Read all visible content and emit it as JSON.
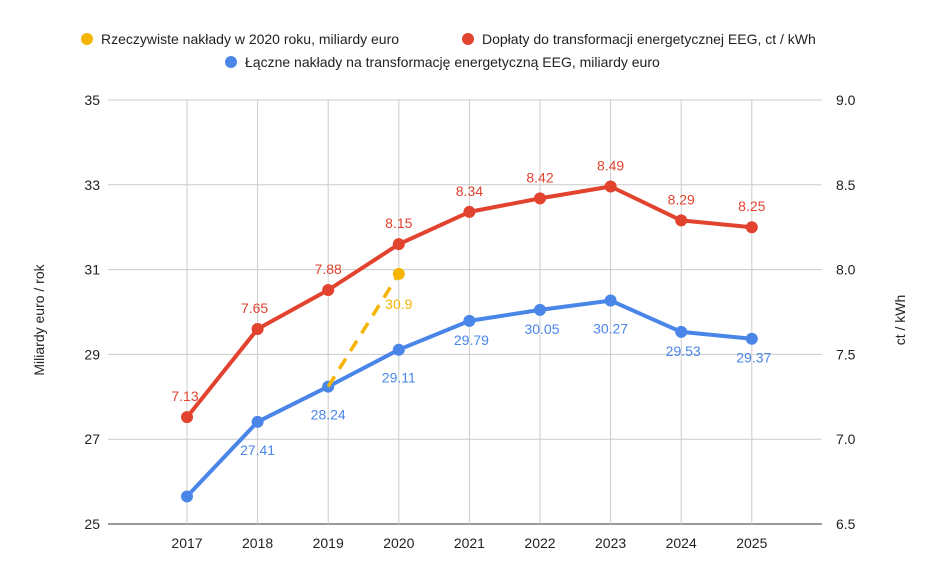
{
  "chart_data": {
    "type": "line",
    "categories": [
      "2017",
      "2018",
      "2019",
      "2020",
      "2021",
      "2022",
      "2023",
      "2024",
      "2025"
    ],
    "y_left": {
      "label": "Miliardy euro / rok",
      "min": 25,
      "max": 35,
      "ticks": [
        "25",
        "27",
        "29",
        "31",
        "33",
        "35"
      ]
    },
    "y_right": {
      "label": "ct / kWh",
      "min": 6.5,
      "max": 9.0,
      "ticks": [
        "6.5",
        "7.0",
        "7.5",
        "8.0",
        "8.5",
        "9.0"
      ]
    },
    "grid": true,
    "legend_position": "top",
    "series": [
      {
        "name": "Rzeczywiste nakłady w 2020 roku, miliardy euro",
        "axis": "left",
        "color": "#F4B400",
        "dashed": true,
        "points": [
          {
            "x": "2019",
            "y": 28.24,
            "label": ""
          },
          {
            "x": "2020",
            "y": 30.9,
            "label": "30.9"
          }
        ]
      },
      {
        "name": "Dopłaty do transformacji energetycznej EEG, ct / kWh",
        "axis": "right",
        "color": "#E2432F",
        "dashed": false,
        "points": [
          {
            "x": "2017",
            "y": 7.13,
            "label": "7.13"
          },
          {
            "x": "2018",
            "y": 7.65,
            "label": "7.65"
          },
          {
            "x": "2019",
            "y": 7.88,
            "label": "7.88"
          },
          {
            "x": "2020",
            "y": 8.15,
            "label": "8.15"
          },
          {
            "x": "2021",
            "y": 8.34,
            "label": "8.34"
          },
          {
            "x": "2022",
            "y": 8.42,
            "label": "8.42"
          },
          {
            "x": "2023",
            "y": 8.49,
            "label": "8.49"
          },
          {
            "x": "2024",
            "y": 8.29,
            "label": "8.29"
          },
          {
            "x": "2025",
            "y": 8.25,
            "label": "8.25"
          }
        ]
      },
      {
        "name": "Łączne nakłady na transformację energetyczną EEG, miliardy euro",
        "axis": "left",
        "color": "#4A86E8",
        "dashed": false,
        "points": [
          {
            "x": "2017",
            "y": 25.65,
            "label": ""
          },
          {
            "x": "2018",
            "y": 27.41,
            "label": "27.41"
          },
          {
            "x": "2019",
            "y": 28.24,
            "label": "28.24"
          },
          {
            "x": "2020",
            "y": 29.11,
            "label": "29.11"
          },
          {
            "x": "2021",
            "y": 29.79,
            "label": "29.79"
          },
          {
            "x": "2022",
            "y": 30.05,
            "label": "30.05"
          },
          {
            "x": "2023",
            "y": 30.27,
            "label": "30.27"
          },
          {
            "x": "2024",
            "y": 29.53,
            "label": "29.53"
          },
          {
            "x": "2025",
            "y": 29.37,
            "label": "29.37"
          }
        ]
      }
    ]
  }
}
